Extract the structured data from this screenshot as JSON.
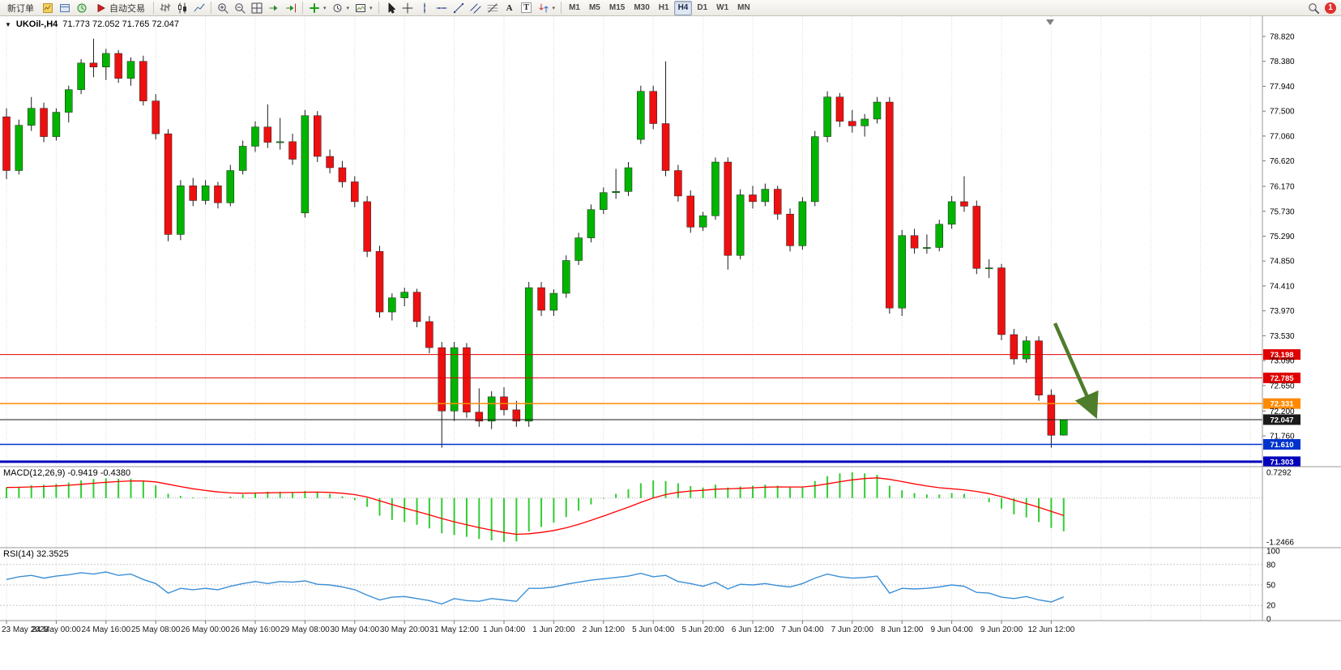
{
  "window": {
    "symbol_period": "UKOil-,H4",
    "ohlc_text": "71.773 72.052 71.765 72.047"
  },
  "toolbar": {
    "new_order_label": "新订单",
    "auto_trading_label": "自动交易",
    "text_tool_label": "A",
    "label_tool_label": "T",
    "timeframes": [
      "M1",
      "M5",
      "M15",
      "M30",
      "H1",
      "H4",
      "D1",
      "W1",
      "MN"
    ],
    "active_timeframe": "H4",
    "notification_count": "1",
    "icon_groups": {
      "account": [
        "quotes-window-icon",
        "profiles-icon",
        "market-watch-icon"
      ],
      "chart_type": [
        "bar-chart-icon",
        "candlestick-chart-icon",
        "line-chart-icon"
      ],
      "chart_tools": [
        "zoom-in-icon",
        "zoom-out-icon",
        "tile-windows-icon",
        "auto-scroll-icon",
        "chart-shift-icon"
      ],
      "insert_tools": [
        "indicators-icon",
        "periods-icon",
        "templates-icon"
      ],
      "line_studies": [
        "cursor-icon",
        "crosshair-icon",
        "vertical-line-icon",
        "horizontal-line-icon",
        "trendline-icon",
        "channel-icon",
        "fibonacci-icon",
        "text-icon",
        "text-label-icon",
        "arrows-icon"
      ],
      "right": [
        "search-icon"
      ]
    }
  },
  "chart_data": {
    "type": "candlestick-with-indicators",
    "symbol": "UKOil-",
    "timeframe": "H4",
    "current_ohlc": {
      "open": 71.773,
      "high": 72.052,
      "low": 71.765,
      "close": 72.047
    },
    "price_axis": [
      "78.820",
      "78.380",
      "77.940",
      "77.500",
      "77.060",
      "76.620",
      "76.170",
      "75.730",
      "75.290",
      "74.850",
      "74.410",
      "73.970",
      "73.530",
      "73.090",
      "72.650",
      "72.200",
      "71.760"
    ],
    "time_axis": [
      "23 May 2023",
      "24 May 00:00",
      "24 May 16:00",
      "25 May 08:00",
      "26 May 00:00",
      "26 May 16:00",
      "29 May 08:00",
      "30 May 04:00",
      "30 May 20:00",
      "31 May 12:00",
      "1 Jun 04:00",
      "1 Jun 20:00",
      "2 Jun 12:00",
      "5 Jun 04:00",
      "5 Jun 20:00",
      "6 Jun 12:00",
      "7 Jun 04:00",
      "7 Jun 20:00",
      "8 Jun 12:00",
      "9 Jun 04:00",
      "9 Jun 20:00",
      "12 Jun 12:00"
    ],
    "candles_per_label": 4,
    "candles": [
      [
        77.4,
        77.55,
        76.3,
        76.45
      ],
      [
        76.45,
        77.35,
        76.38,
        77.25
      ],
      [
        77.25,
        77.75,
        77.15,
        77.55
      ],
      [
        77.55,
        77.65,
        76.95,
        77.05
      ],
      [
        77.05,
        77.55,
        76.98,
        77.48
      ],
      [
        77.48,
        77.95,
        77.3,
        77.88
      ],
      [
        77.88,
        78.42,
        77.8,
        78.35
      ],
      [
        78.35,
        78.78,
        78.1,
        78.28
      ],
      [
        78.28,
        78.6,
        78.05,
        78.52
      ],
      [
        78.52,
        78.58,
        78.0,
        78.08
      ],
      [
        78.08,
        78.45,
        77.95,
        78.38
      ],
      [
        78.38,
        78.48,
        77.6,
        77.68
      ],
      [
        77.68,
        77.8,
        77.0,
        77.1
      ],
      [
        77.1,
        77.18,
        75.2,
        75.32
      ],
      [
        75.32,
        76.28,
        75.22,
        76.18
      ],
      [
        76.18,
        76.32,
        75.82,
        75.92
      ],
      [
        75.92,
        76.28,
        75.85,
        76.18
      ],
      [
        76.18,
        76.25,
        75.78,
        75.88
      ],
      [
        75.88,
        76.55,
        75.82,
        76.45
      ],
      [
        76.45,
        76.98,
        76.38,
        76.88
      ],
      [
        76.88,
        77.32,
        76.78,
        77.22
      ],
      [
        77.22,
        77.62,
        76.85,
        76.95
      ],
      [
        76.95,
        77.38,
        76.82,
        76.96
      ],
      [
        76.96,
        77.1,
        76.55,
        76.65
      ],
      [
        75.7,
        77.52,
        75.62,
        77.42
      ],
      [
        77.42,
        77.5,
        76.6,
        76.7
      ],
      [
        76.7,
        76.82,
        76.4,
        76.5
      ],
      [
        76.5,
        76.62,
        76.15,
        76.25
      ],
      [
        76.25,
        76.35,
        75.8,
        75.9
      ],
      [
        75.9,
        76.0,
        74.92,
        75.02
      ],
      [
        75.02,
        75.12,
        73.85,
        73.95
      ],
      [
        73.95,
        74.28,
        73.8,
        74.2
      ],
      [
        74.2,
        74.38,
        74.05,
        74.3
      ],
      [
        74.3,
        74.36,
        73.68,
        73.78
      ],
      [
        73.78,
        73.88,
        73.22,
        73.32
      ],
      [
        73.32,
        73.42,
        71.55,
        72.2
      ],
      [
        72.2,
        73.42,
        72.02,
        73.32
      ],
      [
        73.32,
        73.4,
        72.08,
        72.18
      ],
      [
        72.18,
        72.6,
        71.92,
        72.02
      ],
      [
        72.02,
        72.55,
        71.88,
        72.45
      ],
      [
        72.45,
        72.62,
        72.12,
        72.22
      ],
      [
        72.22,
        72.38,
        71.92,
        72.02
      ],
      [
        72.02,
        74.48,
        71.92,
        74.38
      ],
      [
        74.38,
        74.48,
        73.88,
        73.98
      ],
      [
        73.98,
        74.35,
        73.88,
        74.28
      ],
      [
        74.28,
        74.95,
        74.2,
        74.86
      ],
      [
        74.86,
        75.35,
        74.78,
        75.26
      ],
      [
        75.26,
        75.85,
        75.18,
        75.76
      ],
      [
        75.76,
        76.15,
        75.68,
        76.06
      ],
      [
        76.06,
        76.48,
        75.95,
        76.08
      ],
      [
        76.08,
        76.6,
        76.0,
        76.5
      ],
      [
        77.0,
        77.95,
        76.92,
        77.85
      ],
      [
        77.85,
        77.95,
        77.18,
        77.28
      ],
      [
        77.28,
        78.38,
        76.35,
        76.45
      ],
      [
        76.45,
        76.55,
        75.9,
        76.0
      ],
      [
        76.0,
        76.1,
        75.35,
        75.45
      ],
      [
        75.45,
        75.72,
        75.38,
        75.65
      ],
      [
        75.65,
        76.68,
        75.58,
        76.6
      ],
      [
        76.6,
        76.68,
        74.7,
        74.95
      ],
      [
        74.95,
        76.12,
        74.88,
        76.02
      ],
      [
        76.02,
        76.18,
        75.78,
        75.9
      ],
      [
        75.9,
        76.22,
        75.82,
        76.12
      ],
      [
        76.12,
        76.18,
        75.58,
        75.68
      ],
      [
        75.68,
        75.78,
        75.02,
        75.12
      ],
      [
        75.12,
        75.98,
        75.05,
        75.9
      ],
      [
        75.9,
        77.15,
        75.82,
        77.05
      ],
      [
        77.05,
        77.85,
        76.95,
        77.75
      ],
      [
        77.75,
        77.82,
        77.22,
        77.32
      ],
      [
        77.32,
        77.52,
        77.12,
        77.24
      ],
      [
        77.24,
        77.45,
        77.05,
        77.36
      ],
      [
        77.36,
        77.75,
        77.28,
        77.66
      ],
      [
        77.66,
        77.75,
        73.92,
        74.02
      ],
      [
        74.02,
        75.4,
        73.88,
        75.3
      ],
      [
        75.3,
        75.42,
        74.98,
        75.08
      ],
      [
        75.08,
        75.32,
        74.98,
        75.09
      ],
      [
        75.09,
        75.58,
        75.02,
        75.5
      ],
      [
        75.5,
        76.0,
        75.42,
        75.9
      ],
      [
        75.9,
        76.35,
        75.72,
        75.82
      ],
      [
        75.82,
        75.92,
        74.62,
        74.72
      ],
      [
        74.72,
        74.88,
        74.55,
        74.73
      ],
      [
        74.73,
        74.8,
        73.45,
        73.55
      ],
      [
        73.55,
        73.65,
        73.02,
        73.12
      ],
      [
        73.12,
        73.52,
        73.05,
        73.44
      ],
      [
        73.44,
        73.52,
        72.38,
        72.48
      ],
      [
        72.48,
        72.58,
        71.55,
        71.77
      ],
      [
        71.773,
        72.052,
        71.765,
        72.047
      ]
    ],
    "levels": [
      {
        "price": 73.198,
        "label": "73.198",
        "color": "#e00000",
        "width": 1
      },
      {
        "price": 72.785,
        "label": "72.785",
        "color": "#e00000",
        "width": 1
      },
      {
        "price": 72.331,
        "label": "72.331",
        "color": "#ff8a00",
        "width": 1.5
      },
      {
        "price": 72.047,
        "label": "72.047",
        "color": "#1a1a1a",
        "width": 1,
        "current": true
      },
      {
        "price": 71.61,
        "label": "71.610",
        "color": "#0033cc",
        "width": 1.5
      },
      {
        "price": 71.303,
        "label": "71.303",
        "color": "#0000bb",
        "width": 3
      }
    ],
    "macd": {
      "label": "MACD(12,26,9) -0.9419 -0.4380",
      "value": -0.9419,
      "signal_value": -0.438,
      "signal_period": 9,
      "axis_max": 0.7292,
      "axis_min": -1.2466,
      "axis_labels": [
        "0.7292",
        "-1.2466"
      ],
      "values": [
        0.3,
        0.32,
        0.36,
        0.38,
        0.4,
        0.44,
        0.5,
        0.54,
        0.56,
        0.55,
        0.55,
        0.48,
        0.36,
        0.12,
        0.06,
        0.02,
        0.02,
        0.0,
        0.04,
        0.1,
        0.16,
        0.18,
        0.18,
        0.16,
        0.2,
        0.18,
        0.12,
        0.05,
        -0.06,
        -0.25,
        -0.5,
        -0.62,
        -0.68,
        -0.76,
        -0.86,
        -1.0,
        -1.05,
        -1.1,
        -1.16,
        -1.2,
        -1.2466,
        -1.23,
        -0.95,
        -0.82,
        -0.7,
        -0.54,
        -0.36,
        -0.18,
        -0.02,
        0.12,
        0.25,
        0.42,
        0.5,
        0.48,
        0.42,
        0.34,
        0.3,
        0.38,
        0.3,
        0.33,
        0.35,
        0.38,
        0.35,
        0.3,
        0.32,
        0.48,
        0.62,
        0.7,
        0.7292,
        0.7,
        0.66,
        0.35,
        0.22,
        0.14,
        0.1,
        0.1,
        0.14,
        0.12,
        0.0,
        -0.12,
        -0.3,
        -0.46,
        -0.55,
        -0.68,
        -0.85,
        -0.9419
      ]
    },
    "rsi": {
      "label": "RSI(14) 32.3525",
      "value": 32.3525,
      "axis_labels": [
        "100",
        "80",
        "50",
        "20",
        "0"
      ],
      "level_lines": [
        80,
        50,
        20
      ],
      "values": [
        58,
        62,
        64,
        60,
        63,
        65,
        68,
        66,
        69,
        64,
        66,
        58,
        52,
        38,
        45,
        43,
        45,
        43,
        48,
        52,
        55,
        52,
        55,
        54,
        56,
        51,
        50,
        47,
        43,
        35,
        28,
        32,
        33,
        30,
        27,
        22,
        30,
        27,
        26,
        30,
        28,
        26,
        45,
        45,
        47,
        51,
        54,
        57,
        59,
        61,
        63,
        67,
        62,
        64,
        55,
        52,
        48,
        54,
        44,
        51,
        50,
        52,
        49,
        47,
        52,
        60,
        66,
        62,
        60,
        61,
        63,
        38,
        45,
        44,
        45,
        47,
        50,
        48,
        39,
        38,
        32,
        30,
        33,
        28,
        25,
        32.35
      ]
    },
    "annotation": {
      "type": "arrow",
      "direction": "down-right",
      "from": {
        "index": 84.3,
        "price": 73.75
      },
      "to": {
        "index": 87.5,
        "price": 72.15
      }
    },
    "colors": {
      "up": "#00b400",
      "down": "#ee1010",
      "wick": "#1c1c1c",
      "macd_histogram": "#33cc33",
      "macd_signal": "#ff0000",
      "rsi_line": "#3b8fd6",
      "grid": "#d9d9d9",
      "separator": "#9a9a9a",
      "arrow": "#4e7d2b"
    }
  }
}
